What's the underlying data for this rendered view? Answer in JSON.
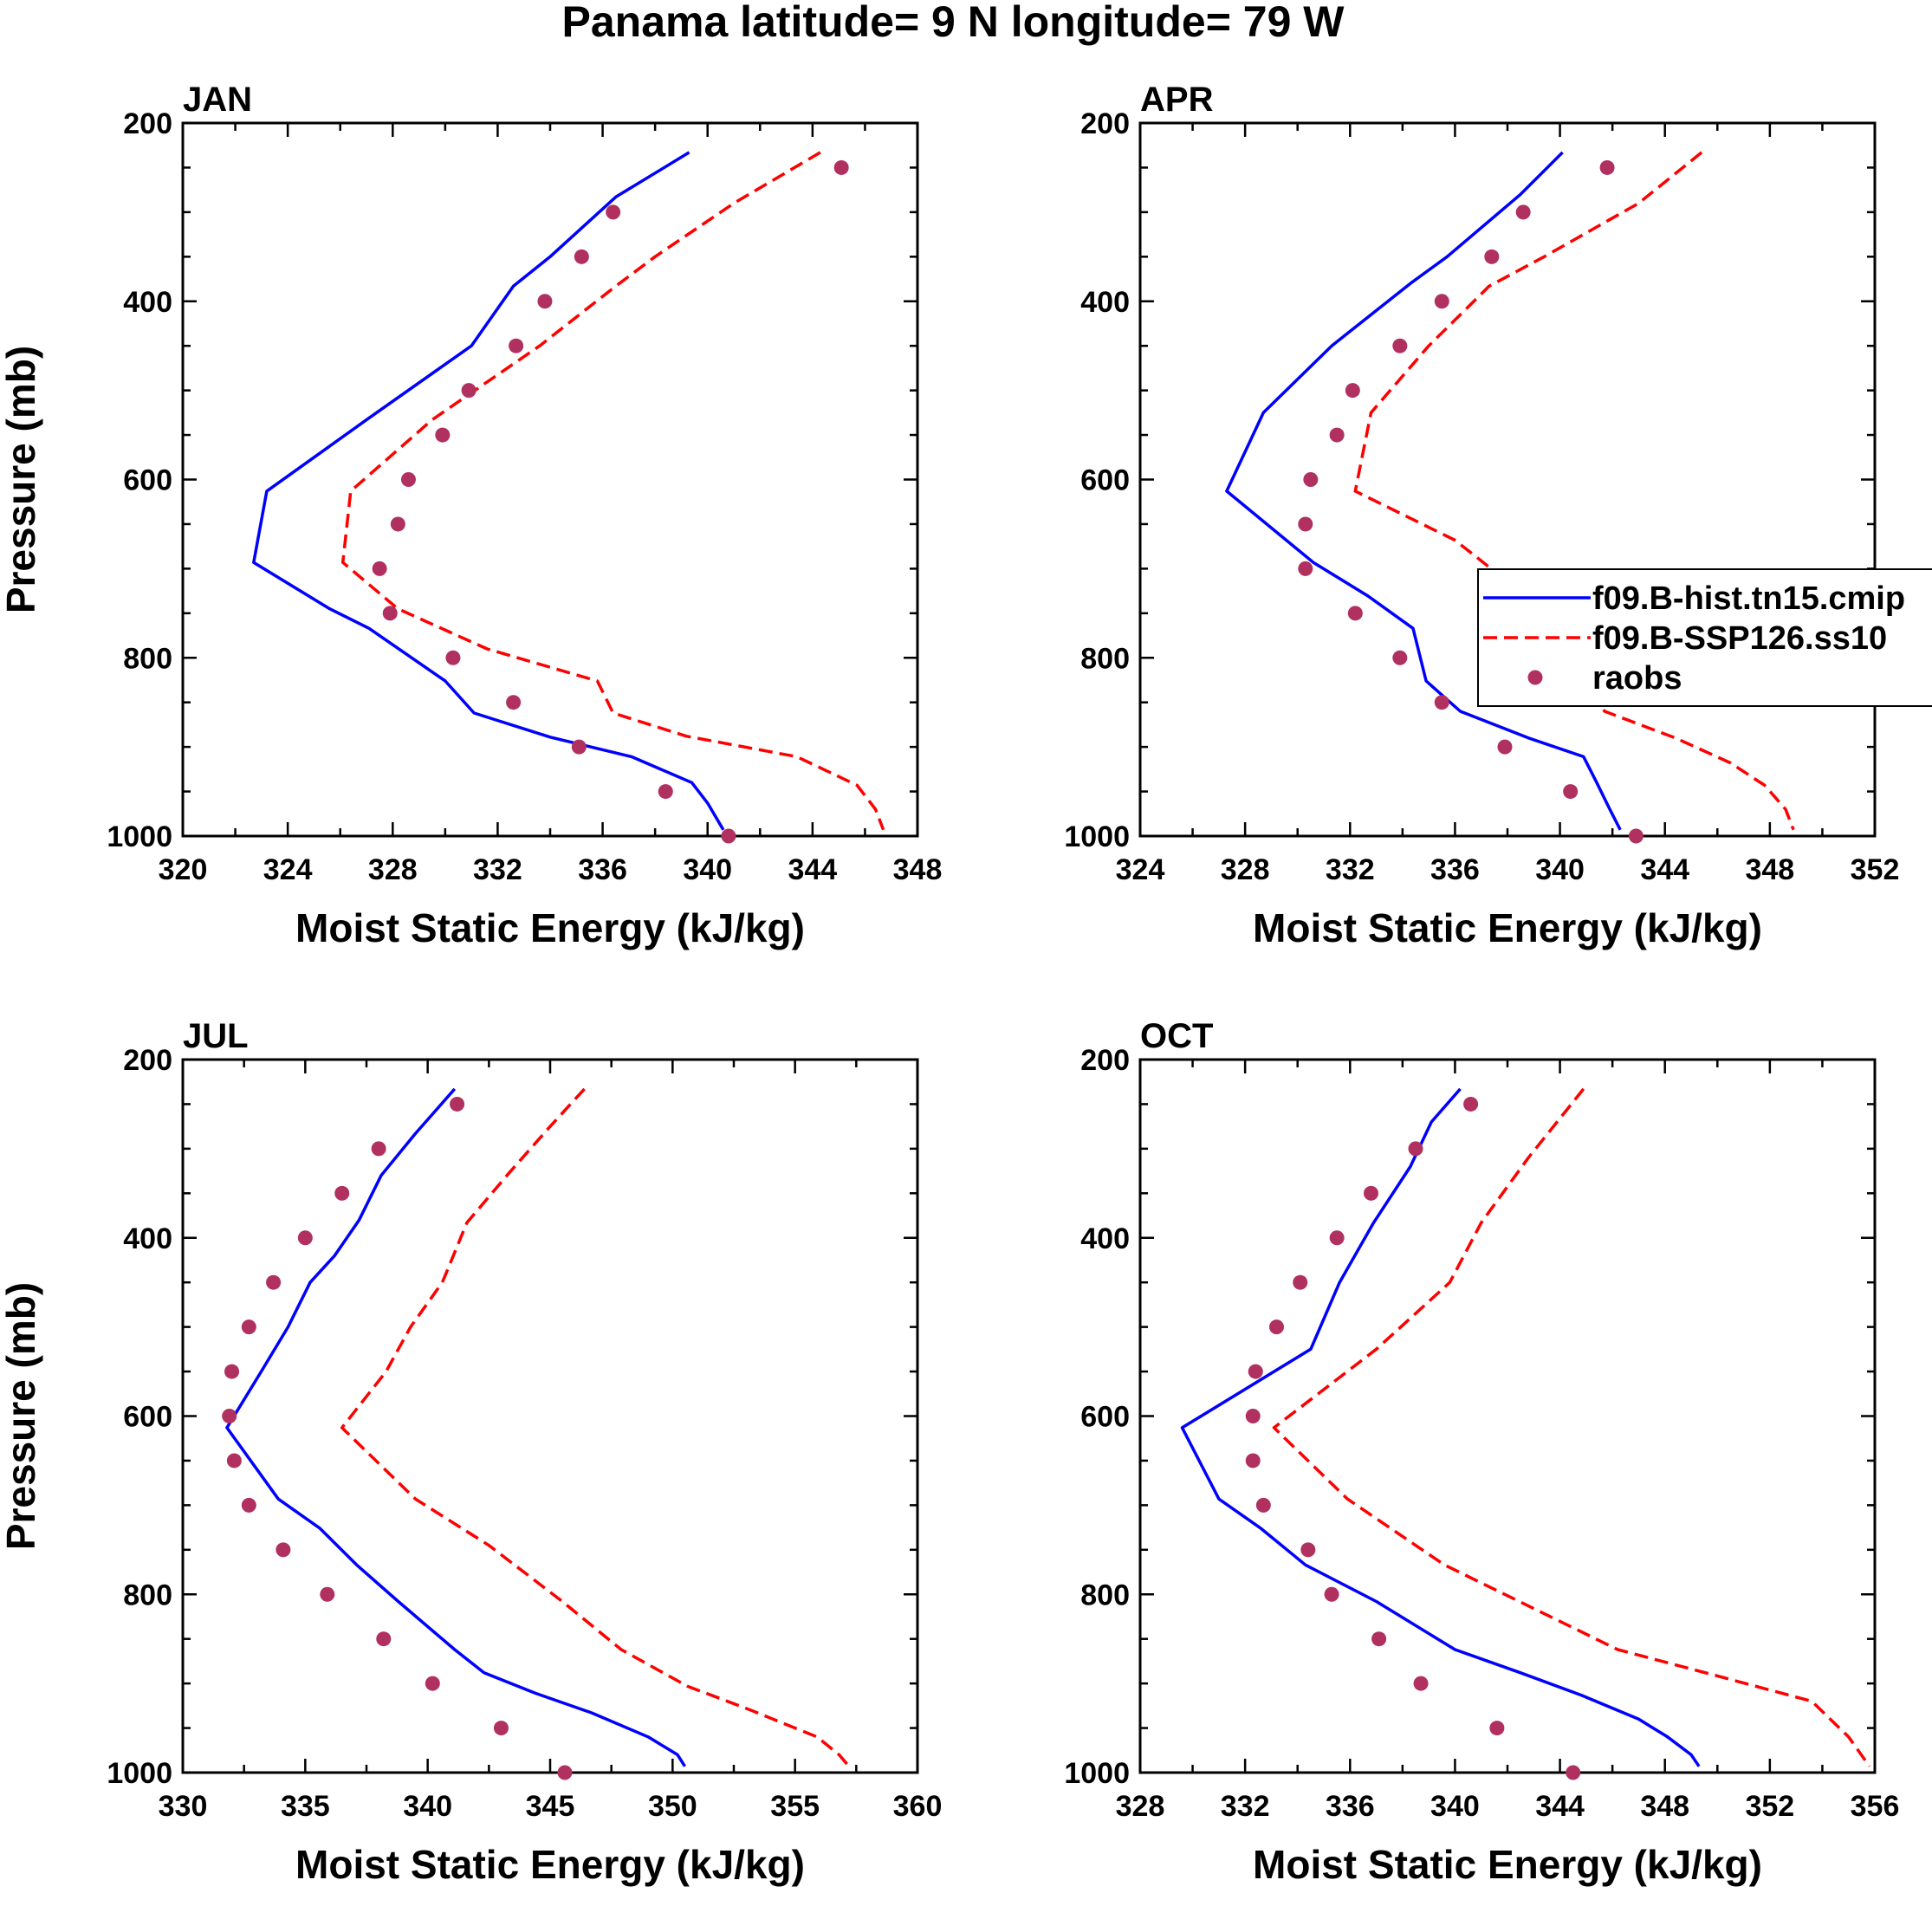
{
  "chart_data": {
    "title": "Panama  latitude= 9 N longitude= 79 W",
    "legend": {
      "placement": "right of APR panel",
      "entries": [
        {
          "label": "f09.B-hist.tn15.cmip",
          "color": "#0000ff",
          "style": "solid"
        },
        {
          "label": "f09.B-SSP126.ss10",
          "color": "#ff0000",
          "style": "dashed"
        },
        {
          "label": "raobs",
          "color": "#b03060",
          "style": "marker"
        }
      ]
    },
    "panels": [
      {
        "type": "line",
        "name": "JAN",
        "xlabel": "Moist Static Energy (kJ/kg)",
        "ylabel": "Pressure (mb)",
        "xlim": [
          320,
          348
        ],
        "ylim": [
          200,
          1000
        ],
        "y_reversed": true,
        "xticks": [
          320,
          324,
          328,
          332,
          336,
          340,
          344,
          348
        ],
        "yticks": [
          200,
          400,
          600,
          800,
          1000
        ],
        "series": [
          {
            "name": "f09.B-hist.tn15.cmip",
            "color": "#0000ff",
            "style": "solid",
            "points": [
              [
                339.3,
                233
              ],
              [
                336.5,
                283
              ],
              [
                334,
                350
              ],
              [
                332.6,
                383
              ],
              [
                331,
                450
              ],
              [
                327,
                533
              ],
              [
                323.2,
                613
              ],
              [
                322.7,
                693
              ],
              [
                325.6,
                745
              ],
              [
                327.1,
                767
              ],
              [
                330,
                826
              ],
              [
                331.1,
                862
              ],
              [
                334,
                889
              ],
              [
                337.1,
                911
              ],
              [
                339.4,
                940
              ],
              [
                340,
                963
              ],
              [
                340.6,
                993
              ]
            ]
          },
          {
            "name": "f09.B-SSP126.ss10",
            "color": "#ff0000",
            "style": "dashed",
            "points": [
              [
                344.3,
                233
              ],
              [
                341,
                290
              ],
              [
                338,
                350
              ],
              [
                336.5,
                383
              ],
              [
                333.6,
                450
              ],
              [
                329.5,
                533
              ],
              [
                326.4,
                613
              ],
              [
                326.1,
                693
              ],
              [
                328.2,
                745
              ],
              [
                331.6,
                790
              ],
              [
                335.8,
                826
              ],
              [
                336.4,
                862
              ],
              [
                339.2,
                888
              ],
              [
                343.4,
                911
              ],
              [
                345.7,
                943
              ],
              [
                346.4,
                970
              ],
              [
                346.7,
                993
              ]
            ]
          },
          {
            "name": "raobs",
            "color": "#b03060",
            "style": "marker",
            "points": [
              [
                345.1,
                250
              ],
              [
                336.4,
                300
              ],
              [
                335.2,
                350
              ],
              [
                333.8,
                400
              ],
              [
                332.7,
                450
              ],
              [
                330.9,
                500
              ],
              [
                329.9,
                550
              ],
              [
                328.6,
                600
              ],
              [
                328.2,
                650
              ],
              [
                327.5,
                700
              ],
              [
                327.9,
                750
              ],
              [
                330.3,
                800
              ],
              [
                332.6,
                850
              ],
              [
                335.1,
                900
              ],
              [
                338.4,
                950
              ],
              [
                340.8,
                1000
              ]
            ]
          }
        ]
      },
      {
        "type": "line",
        "name": "APR",
        "xlabel": "Moist Static Energy (kJ/kg)",
        "ylabel": "",
        "xlim": [
          324,
          352
        ],
        "ylim": [
          200,
          1000
        ],
        "y_reversed": true,
        "xticks": [
          324,
          328,
          332,
          336,
          340,
          344,
          348,
          352
        ],
        "yticks": [
          200,
          400,
          600,
          800,
          1000
        ],
        "series": [
          {
            "name": "f09.B-hist.tn15.cmip",
            "color": "#0000ff",
            "style": "solid",
            "points": [
              [
                340.1,
                233
              ],
              [
                338.5,
                280
              ],
              [
                335.7,
                350
              ],
              [
                334.3,
                380
              ],
              [
                331.3,
                450
              ],
              [
                328.7,
                525
              ],
              [
                327.3,
                613
              ],
              [
                330.6,
                693
              ],
              [
                332.7,
                731
              ],
              [
                334.4,
                767
              ],
              [
                334.9,
                826
              ],
              [
                336.2,
                860
              ],
              [
                338.8,
                890
              ],
              [
                340.9,
                911
              ],
              [
                341.4,
                940
              ],
              [
                341.9,
                970
              ],
              [
                342.3,
                993
              ]
            ]
          },
          {
            "name": "f09.B-SSP126.ss10",
            "color": "#ff0000",
            "style": "dashed",
            "points": [
              [
                345.4,
                233
              ],
              [
                343,
                290
              ],
              [
                339.4,
                350
              ],
              [
                337.3,
                383
              ],
              [
                335,
                450
              ],
              [
                332.8,
                525
              ],
              [
                332.2,
                613
              ],
              [
                336,
                668
              ],
              [
                338.5,
                726
              ],
              [
                340.5,
                767
              ],
              [
                340.8,
                820
              ],
              [
                341.7,
                860
              ],
              [
                344.4,
                890
              ],
              [
                346.5,
                918
              ],
              [
                347.8,
                943
              ],
              [
                348.6,
                970
              ],
              [
                348.9,
                993
              ]
            ]
          },
          {
            "name": "raobs",
            "color": "#b03060",
            "style": "marker",
            "points": [
              [
                341.8,
                250
              ],
              [
                338.6,
                300
              ],
              [
                337.4,
                350
              ],
              [
                335.5,
                400
              ],
              [
                333.9,
                450
              ],
              [
                332.1,
                500
              ],
              [
                331.5,
                550
              ],
              [
                330.5,
                600
              ],
              [
                330.3,
                650
              ],
              [
                330.3,
                700
              ],
              [
                332.2,
                750
              ],
              [
                333.9,
                800
              ],
              [
                335.5,
                850
              ],
              [
                337.9,
                900
              ],
              [
                340.4,
                950
              ],
              [
                342.9,
                1000
              ]
            ]
          }
        ]
      },
      {
        "type": "line",
        "name": "JUL",
        "xlabel": "Moist Static Energy (kJ/kg)",
        "ylabel": "Pressure (mb)",
        "xlim": [
          330,
          360
        ],
        "ylim": [
          200,
          1000
        ],
        "y_reversed": true,
        "xticks": [
          330,
          335,
          340,
          345,
          350,
          355,
          360
        ],
        "yticks": [
          200,
          400,
          600,
          800,
          1000
        ],
        "series": [
          {
            "name": "f09.B-hist.tn15.cmip",
            "color": "#0000ff",
            "style": "solid",
            "points": [
              [
                341.1,
                233
              ],
              [
                339.5,
                283
              ],
              [
                338.1,
                330
              ],
              [
                337.2,
                380
              ],
              [
                336.2,
                420
              ],
              [
                335.2,
                450
              ],
              [
                334.3,
                500
              ],
              [
                333.2,
                550
              ],
              [
                331.8,
                613
              ],
              [
                333.9,
                693
              ],
              [
                335.6,
                726
              ],
              [
                337.1,
                767
              ],
              [
                338.8,
                808
              ],
              [
                341.1,
                862
              ],
              [
                342.3,
                888
              ],
              [
                344.4,
                911
              ],
              [
                346.7,
                933
              ],
              [
                349,
                960
              ],
              [
                350.2,
                980
              ],
              [
                350.5,
                993
              ]
            ]
          },
          {
            "name": "f09.B-SSP126.ss10",
            "color": "#ff0000",
            "style": "dashed",
            "points": [
              [
                346.4,
                233
              ],
              [
                345,
                275
              ],
              [
                343.3,
                328
              ],
              [
                341.6,
                383
              ],
              [
                340.6,
                450
              ],
              [
                339.3,
                500
              ],
              [
                338.3,
                550
              ],
              [
                336.5,
                613
              ],
              [
                339.5,
                693
              ],
              [
                342.5,
                745
              ],
              [
                345.5,
                808
              ],
              [
                347.9,
                862
              ],
              [
                350.6,
                903
              ],
              [
                353.2,
                930
              ],
              [
                355.9,
                960
              ],
              [
                356.8,
                980
              ],
              [
                357.2,
                993
              ]
            ]
          },
          {
            "name": "raobs",
            "color": "#b03060",
            "style": "marker",
            "points": [
              [
                341.2,
                250
              ],
              [
                338,
                300
              ],
              [
                336.5,
                350
              ],
              [
                335,
                400
              ],
              [
                333.7,
                450
              ],
              [
                332.7,
                500
              ],
              [
                332,
                550
              ],
              [
                331.9,
                600
              ],
              [
                332.1,
                650
              ],
              [
                332.7,
                700
              ],
              [
                334.1,
                750
              ],
              [
                335.9,
                800
              ],
              [
                338.2,
                850
              ],
              [
                340.2,
                900
              ],
              [
                343,
                950
              ],
              [
                345.6,
                1000
              ]
            ]
          }
        ]
      },
      {
        "type": "line",
        "name": "OCT",
        "xlabel": "Moist Static Energy (kJ/kg)",
        "ylabel": "",
        "xlim": [
          328,
          356
        ],
        "ylim": [
          200,
          1000
        ],
        "y_reversed": true,
        "xticks": [
          328,
          332,
          336,
          340,
          344,
          348,
          352,
          356
        ],
        "yticks": [
          200,
          400,
          600,
          800,
          1000
        ],
        "series": [
          {
            "name": "f09.B-hist.tn15.cmip",
            "color": "#0000ff",
            "style": "solid",
            "points": [
              [
                340.2,
                233
              ],
              [
                339.1,
                270
              ],
              [
                338.3,
                320
              ],
              [
                336.9,
                383
              ],
              [
                335.6,
                450
              ],
              [
                334.5,
                525
              ],
              [
                329.6,
                613
              ],
              [
                331,
                693
              ],
              [
                332.6,
                726
              ],
              [
                334.3,
                767
              ],
              [
                337,
                808
              ],
              [
                340,
                862
              ],
              [
                342.5,
                888
              ],
              [
                344.8,
                913
              ],
              [
                347,
                940
              ],
              [
                348.1,
                960
              ],
              [
                349,
                980
              ],
              [
                349.3,
                993
              ]
            ]
          },
          {
            "name": "f09.B-SSP126.ss10",
            "color": "#ff0000",
            "style": "dashed",
            "points": [
              [
                344.9,
                233
              ],
              [
                342.8,
                310
              ],
              [
                341,
                383
              ],
              [
                339.8,
                450
              ],
              [
                337,
                525
              ],
              [
                333.1,
                613
              ],
              [
                335.9,
                693
              ],
              [
                339.6,
                767
              ],
              [
                346.2,
                862
              ],
              [
                349.8,
                890
              ],
              [
                353.6,
                920
              ],
              [
                355,
                960
              ],
              [
                355.8,
                993
              ]
            ]
          },
          {
            "name": "raobs",
            "color": "#b03060",
            "style": "marker",
            "points": [
              [
                340.6,
                250
              ],
              [
                338.5,
                300
              ],
              [
                336.8,
                350
              ],
              [
                335.5,
                400
              ],
              [
                334.1,
                450
              ],
              [
                333.2,
                500
              ],
              [
                332.4,
                550
              ],
              [
                332.3,
                600
              ],
              [
                332.3,
                650
              ],
              [
                332.7,
                700
              ],
              [
                334.4,
                750
              ],
              [
                335.3,
                800
              ],
              [
                337.1,
                850
              ],
              [
                338.7,
                900
              ],
              [
                341.6,
                950
              ],
              [
                344.5,
                1000
              ]
            ]
          }
        ]
      }
    ]
  }
}
